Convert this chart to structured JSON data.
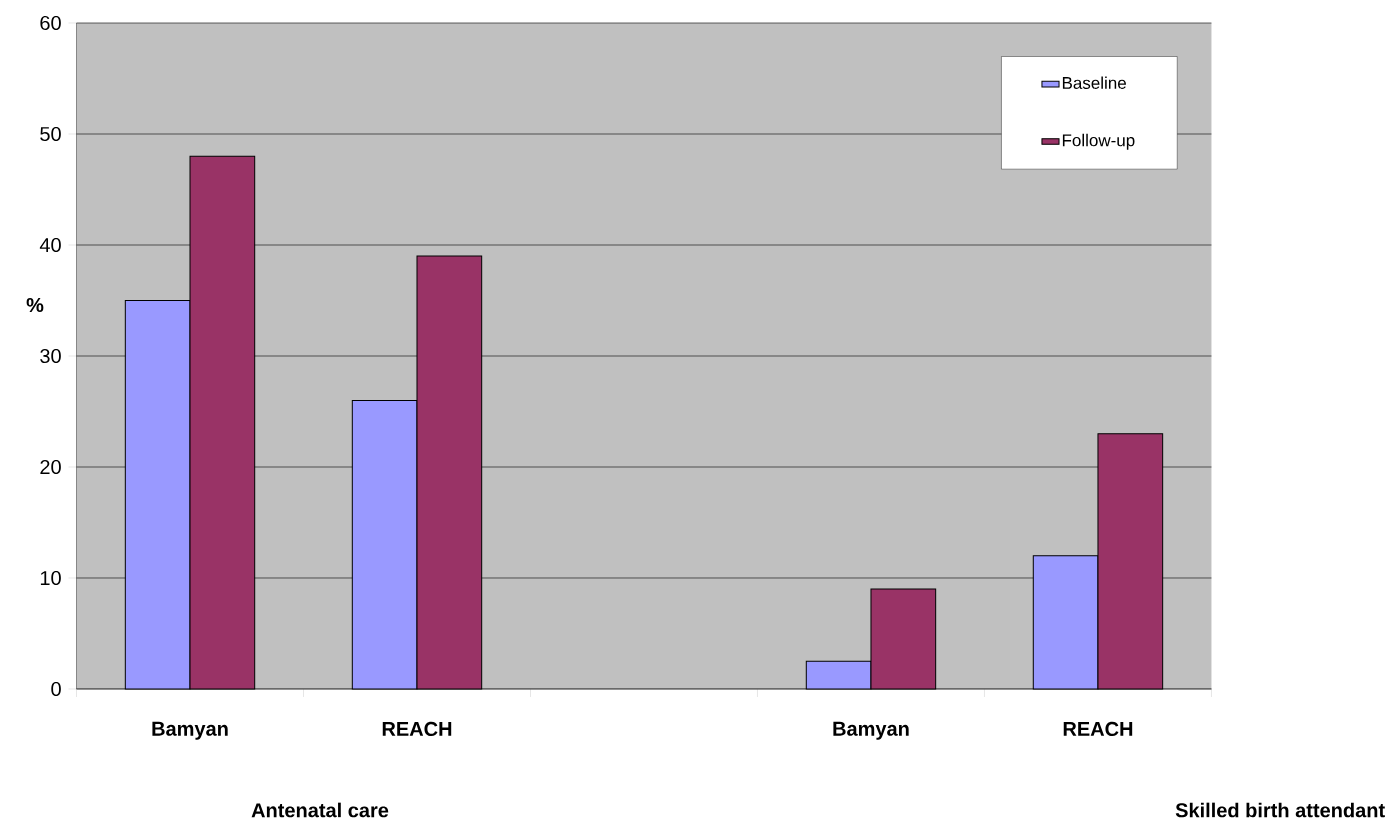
{
  "chart_data": {
    "type": "bar",
    "ylabel": "%",
    "categories": [
      "Bamyan",
      "REACH",
      null,
      "Bamyan",
      "REACH"
    ],
    "series": [
      {
        "name": "Baseline",
        "color": "#9999ff",
        "values": [
          35,
          26,
          null,
          2.5,
          12
        ]
      },
      {
        "name": "Follow-up",
        "color": "#993366",
        "values": [
          48,
          39,
          null,
          9,
          23
        ]
      }
    ],
    "ylim": [
      0,
      60
    ],
    "yticks": [
      0,
      10,
      20,
      30,
      40,
      50,
      60
    ],
    "grid": "y",
    "legend": "top right",
    "annotations": [
      "Antenatal care",
      "Skilled birth attendant"
    ]
  }
}
